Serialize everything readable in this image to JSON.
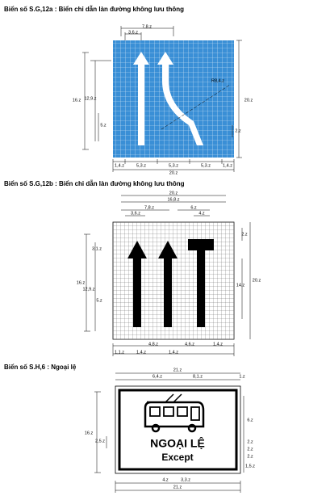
{
  "signs": [
    {
      "title": "Biển số S.G,12a : Biển chỉ dẫn làn đường không lưu thông",
      "dimensions": [
        "7,8.z",
        "3,6.z",
        "16.z",
        "12,9.z",
        "5.z",
        "R8,4.z",
        "20.z",
        "2.z",
        "1,4.z",
        "5,3.z",
        "5,3.z",
        "5,3.z",
        "1,4.z",
        "20.z"
      ]
    },
    {
      "title": "Biển số S.G,12b : Biển chỉ dẫn làn đường không lưu thông",
      "dimensions": [
        "20.z",
        "16,8.z",
        "7,8.z",
        "6.z",
        "3,6.z",
        "4.z",
        "2.z",
        "3,1.z",
        "16.z",
        "12,9.z",
        "5.z",
        "14.z",
        "20.z",
        "4,8.z",
        "4,6.z",
        "1,4.z",
        "1,1.z",
        "1,4.z",
        "1,4.z"
      ]
    },
    {
      "title": "Biển số S.H,6 : Ngoại lệ",
      "sign_text": [
        "NGOẠI LỆ",
        "Except"
      ],
      "dimensions": [
        "21.z",
        "6,4.z",
        "8,1.z",
        "1.z",
        "16.z",
        "2,5.z",
        "6.z",
        "2.z",
        "2.z",
        "2.z",
        "1,5.z",
        "4.z",
        "3,3.z",
        "21.z"
      ]
    }
  ]
}
